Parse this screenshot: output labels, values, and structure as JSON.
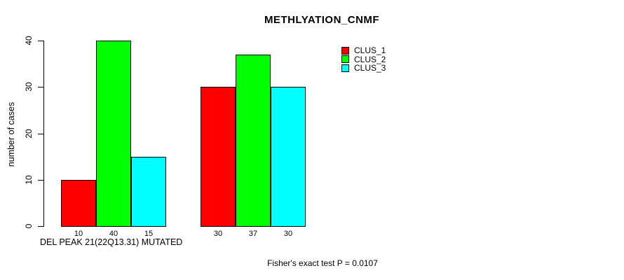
{
  "title": "METHLYATION_CNMF",
  "footnote": "Fisher's exact test P = 0.0107",
  "colors": {
    "background": "#FFFFFF",
    "text": "#000000",
    "bar_border": "#000000",
    "clus_1": "#FF0000",
    "clus_2": "#00FF00",
    "clus_3": "#00FFFF"
  },
  "chart_data": {
    "type": "bar",
    "title": "METHLYATION_CNMF",
    "xlabel": "DEL PEAK 21(22Q13.31) MUTATED",
    "ylabel": "number of cases",
    "ylim": [
      0,
      40
    ],
    "yticks": [
      0,
      10,
      20,
      30,
      40
    ],
    "grid": false,
    "legend_position": "top-right",
    "series": [
      {
        "name": "CLUS_1",
        "color": "#FF0000",
        "values": [
          10,
          30
        ]
      },
      {
        "name": "CLUS_2",
        "color": "#00FF00",
        "values": [
          40,
          37
        ]
      },
      {
        "name": "CLUS_3",
        "color": "#00FFFF",
        "values": [
          15,
          30
        ]
      }
    ],
    "bar_value_labels": [
      [
        "10",
        "40",
        "15"
      ],
      [
        "30",
        "37",
        "30"
      ]
    ],
    "annotation": "Fisher's exact test P = 0.0107"
  }
}
